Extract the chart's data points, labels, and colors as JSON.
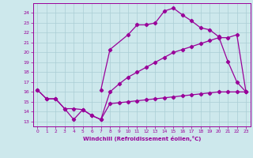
{
  "background_color": "#cde8ec",
  "grid_color": "#aacdd4",
  "line_color": "#990099",
  "xlabel": "Windchill (Refroidissement éolien,°C)",
  "xlim": [
    -0.5,
    23.5
  ],
  "ylim": [
    12.5,
    25.0
  ],
  "yticks": [
    13,
    14,
    15,
    16,
    17,
    18,
    19,
    20,
    21,
    22,
    23,
    24
  ],
  "xticks": [
    0,
    1,
    2,
    3,
    4,
    5,
    6,
    7,
    8,
    9,
    10,
    11,
    12,
    13,
    14,
    15,
    16,
    17,
    18,
    19,
    20,
    21,
    22,
    23
  ],
  "series1_x": [
    0,
    1,
    2,
    3,
    4,
    5,
    6,
    7,
    8,
    9,
    10,
    11,
    12,
    13,
    14,
    15,
    16,
    17,
    18,
    19,
    20,
    21,
    22,
    23
  ],
  "series1_y": [
    16.2,
    15.3,
    15.3,
    14.3,
    13.2,
    14.2,
    13.6,
    13.2,
    14.8,
    14.9,
    15.0,
    15.1,
    15.2,
    15.3,
    15.4,
    15.5,
    15.6,
    15.7,
    15.8,
    15.9,
    16.0,
    16.0,
    16.0,
    16.0
  ],
  "series2_x": [
    0,
    1,
    2,
    3,
    4,
    5,
    6,
    7,
    8,
    9,
    10,
    11,
    12,
    13,
    14,
    15,
    16,
    17,
    18,
    19,
    20,
    21,
    22,
    23
  ],
  "series2_y": [
    16.2,
    15.3,
    15.3,
    14.3,
    14.3,
    14.2,
    13.6,
    13.2,
    16.0,
    16.8,
    17.5,
    18.0,
    18.5,
    19.0,
    19.5,
    20.0,
    20.3,
    20.6,
    20.9,
    21.2,
    21.5,
    21.5,
    21.8,
    16.0
  ],
  "series3_x": [
    7,
    8,
    10,
    11,
    12,
    13,
    14,
    15,
    16,
    17,
    18,
    19,
    20,
    21,
    22,
    23
  ],
  "series3_y": [
    16.2,
    20.3,
    21.8,
    22.8,
    22.8,
    23.0,
    24.2,
    24.5,
    23.8,
    23.2,
    22.5,
    22.3,
    21.6,
    19.1,
    17.0,
    16.0
  ]
}
